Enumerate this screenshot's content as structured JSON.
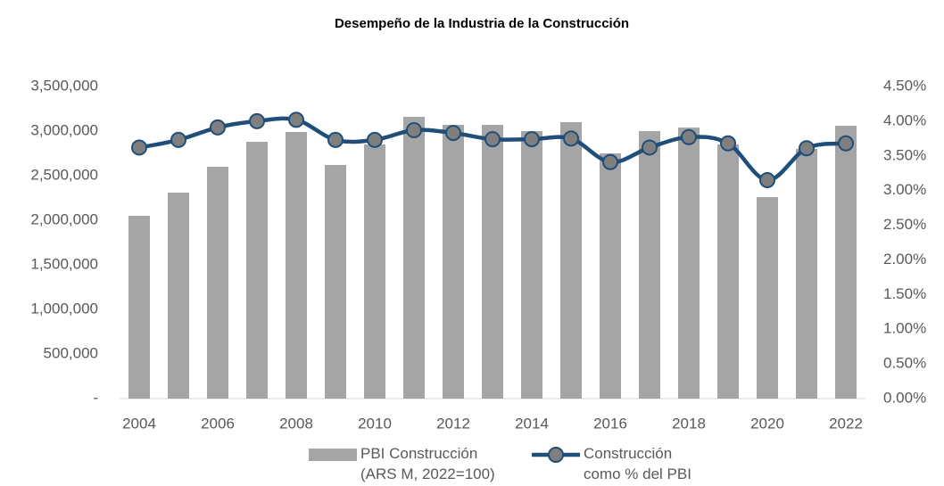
{
  "chart_data": {
    "type": "bar+line",
    "title": "Desempeño de la Industria de la Construcción",
    "x": [
      2004,
      2005,
      2006,
      2007,
      2008,
      2009,
      2010,
      2011,
      2012,
      2013,
      2014,
      2015,
      2016,
      2017,
      2018,
      2019,
      2020,
      2021,
      2022
    ],
    "xlim": [
      2003.5,
      2022.5
    ],
    "xticks": [
      2004,
      2006,
      2008,
      2010,
      2012,
      2014,
      2016,
      2018,
      2020,
      2022
    ],
    "ylim": [
      0,
      3500000
    ],
    "yticks": [
      {
        "value": 0,
        "label": "-"
      },
      {
        "value": 500000,
        "label": "500,000"
      },
      {
        "value": 1000000,
        "label": "1,000,000"
      },
      {
        "value": 1500000,
        "label": "1,500,000"
      },
      {
        "value": 2000000,
        "label": "2,000,000"
      },
      {
        "value": 2500000,
        "label": "2,500,000"
      },
      {
        "value": 3000000,
        "label": "3,000,000"
      },
      {
        "value": 3500000,
        "label": "3,500,000"
      }
    ],
    "y2lim": [
      0,
      4.5
    ],
    "y2ticks": [
      {
        "value": 0,
        "label": "0.00%"
      },
      {
        "value": 0.5,
        "label": "0.50%"
      },
      {
        "value": 1,
        "label": "1.00%"
      },
      {
        "value": 1.5,
        "label": "1.50%"
      },
      {
        "value": 2,
        "label": "2.00%"
      },
      {
        "value": 2.5,
        "label": "2.50%"
      },
      {
        "value": 3,
        "label": "3.00%"
      },
      {
        "value": 3.5,
        "label": "3.50%"
      },
      {
        "value": 4,
        "label": "4.00%"
      },
      {
        "value": 4.5,
        "label": "4.50%"
      }
    ],
    "series": [
      {
        "name": "PBI Construcción (ARS M, 2022=100)",
        "type": "bar",
        "color": "#a5a5a5",
        "values": [
          2050000,
          2310000,
          2600000,
          2880000,
          2990000,
          2620000,
          2850000,
          3160000,
          3070000,
          3070000,
          3000000,
          3100000,
          2750000,
          3000000,
          3040000,
          2850000,
          2260000,
          2800000,
          3060000
        ]
      },
      {
        "name": "Construcción como % del PBI",
        "type": "line",
        "axis": "y2",
        "color": "#1f4e79",
        "marker_color": "#7f7f7f",
        "values": [
          3.62,
          3.73,
          3.91,
          4.0,
          4.02,
          3.73,
          3.73,
          3.87,
          3.83,
          3.74,
          3.74,
          3.75,
          3.41,
          3.62,
          3.77,
          3.68,
          3.15,
          3.61,
          3.68
        ]
      }
    ]
  }
}
